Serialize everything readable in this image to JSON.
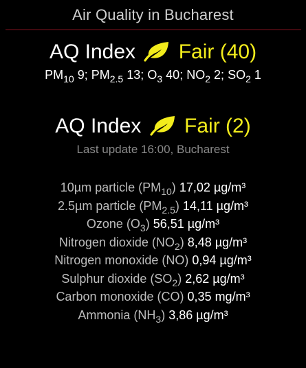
{
  "header": {
    "title": "Air Quality in Bucharest"
  },
  "colors": {
    "background": "#000000",
    "accent_rule": "#8b1320",
    "status_fair": "#f2ec1c",
    "muted_text": "#8a8a8a"
  },
  "current": {
    "label": "AQ Index",
    "icon": "leaf-icon",
    "status": "Fair (40)",
    "summary": [
      {
        "name": "PM",
        "sub": "10",
        "value": "9"
      },
      {
        "name": "PM",
        "sub": "2.5",
        "value": "13"
      },
      {
        "name": "O",
        "sub": "3",
        "value": "40"
      },
      {
        "name": "NO",
        "sub": "2",
        "value": "2"
      },
      {
        "name": "SO",
        "sub": "2",
        "value": "1"
      }
    ]
  },
  "forecast": {
    "label": "AQ Index",
    "icon": "leaf-icon",
    "status": "Fair (2)",
    "last_update": "Last update 16:00, Bucharest",
    "details": [
      {
        "name": "10µm particle (PM",
        "sub": "10",
        "name_end": ")",
        "value": "17,02 µg/m³"
      },
      {
        "name": "2.5µm particle (PM",
        "sub": "2.5",
        "name_end": ")",
        "value": "14,11 µg/m³"
      },
      {
        "name": "Ozone (O",
        "sub": "3",
        "name_end": ")",
        "value": "56,51 µg/m³"
      },
      {
        "name": "Nitrogen dioxide (NO",
        "sub": "2",
        "name_end": ")",
        "value": "8,48 µg/m³"
      },
      {
        "name": "Nitrogen monoxide (NO)",
        "sub": "",
        "name_end": "",
        "value": "0,94 µg/m³"
      },
      {
        "name": "Sulphur dioxide (SO",
        "sub": "2",
        "name_end": ")",
        "value": "2,62 µg/m³"
      },
      {
        "name": "Carbon monoxide (CO)",
        "sub": "",
        "name_end": "",
        "value": "0,35 mg/m³"
      },
      {
        "name": "Ammonia (NH",
        "sub": "3",
        "name_end": ")",
        "value": "3,86 µg/m³"
      }
    ]
  }
}
